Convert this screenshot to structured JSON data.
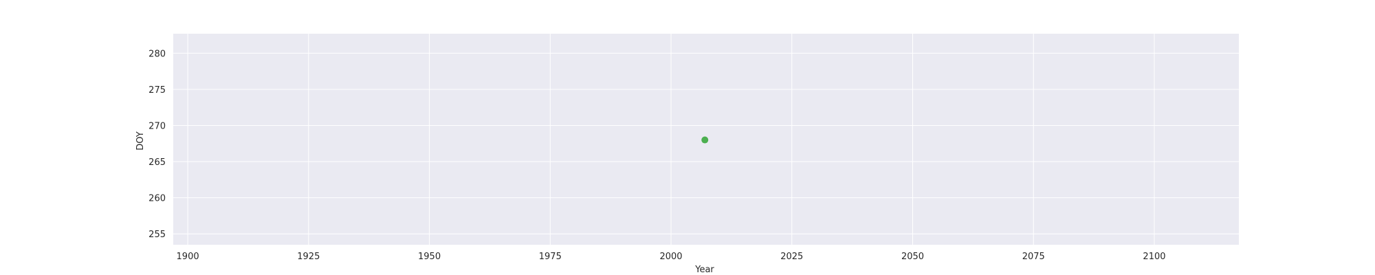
{
  "chart_data": {
    "type": "scatter",
    "xlabel": "Year",
    "ylabel": "DOY",
    "xlim": [
      1897,
      2117.5
    ],
    "ylim": [
      253.5,
      282.7
    ],
    "xticks": [
      1900,
      1925,
      1950,
      1975,
      2000,
      2025,
      2050,
      2075,
      2100
    ],
    "yticks": [
      255,
      260,
      265,
      270,
      275,
      280
    ],
    "grid": true,
    "background": "#eaeaf2",
    "grid_color": "#ffffff",
    "series": [
      {
        "color": "#4caf50",
        "points": [
          {
            "x": 2007,
            "y": 268
          }
        ]
      }
    ]
  }
}
